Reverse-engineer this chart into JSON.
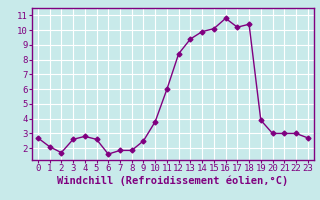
{
  "x": [
    0,
    1,
    2,
    3,
    4,
    5,
    6,
    7,
    8,
    9,
    10,
    11,
    12,
    13,
    14,
    15,
    16,
    17,
    18,
    19,
    20,
    21,
    22,
    23
  ],
  "y": [
    2.7,
    2.1,
    1.7,
    2.6,
    2.8,
    2.6,
    1.6,
    1.85,
    1.85,
    2.5,
    3.8,
    6.0,
    8.4,
    9.4,
    9.9,
    10.1,
    10.8,
    10.2,
    10.4,
    3.9,
    3.0,
    3.0,
    3.0,
    2.7
  ],
  "line_color": "#800080",
  "marker": "D",
  "marker_size": 2.5,
  "bg_color": "#c8eaea",
  "grid_color": "#ffffff",
  "xlabel": "Windchill (Refroidissement éolien,°C)",
  "xlim": [
    -0.5,
    23.5
  ],
  "ylim": [
    1.2,
    11.5
  ],
  "yticks": [
    2,
    3,
    4,
    5,
    6,
    7,
    8,
    9,
    10,
    11
  ],
  "xticks": [
    0,
    1,
    2,
    3,
    4,
    5,
    6,
    7,
    8,
    9,
    10,
    11,
    12,
    13,
    14,
    15,
    16,
    17,
    18,
    19,
    20,
    21,
    22,
    23
  ],
  "tick_color": "#800080",
  "label_color": "#800080",
  "spine_color": "#800080",
  "font_size": 6.5,
  "xlabel_font_size": 7.5
}
